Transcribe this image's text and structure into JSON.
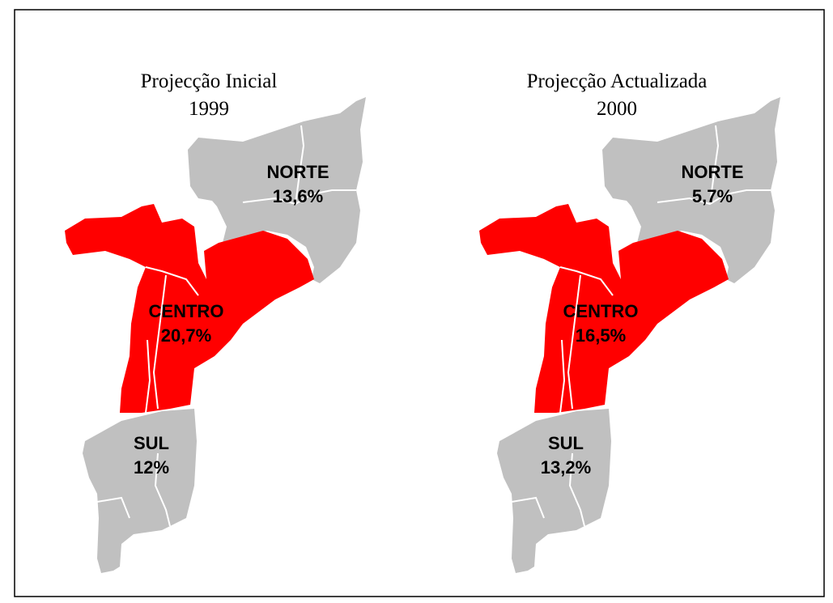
{
  "maps": [
    {
      "title": "Projecção Inicial",
      "subtitle": "1999",
      "regions": [
        {
          "name": "NORTE",
          "label": "13,6%"
        },
        {
          "name": "CENTRO",
          "label": "20,7%"
        },
        {
          "name": "SUL",
          "label": "12%"
        }
      ]
    },
    {
      "title": "Projecção Actualizada",
      "subtitle": "2000",
      "regions": [
        {
          "name": "NORTE",
          "label": "5,7%"
        },
        {
          "name": "CENTRO",
          "label": "16,5%"
        },
        {
          "name": "SUL",
          "label": "13,2%"
        }
      ]
    }
  ]
}
